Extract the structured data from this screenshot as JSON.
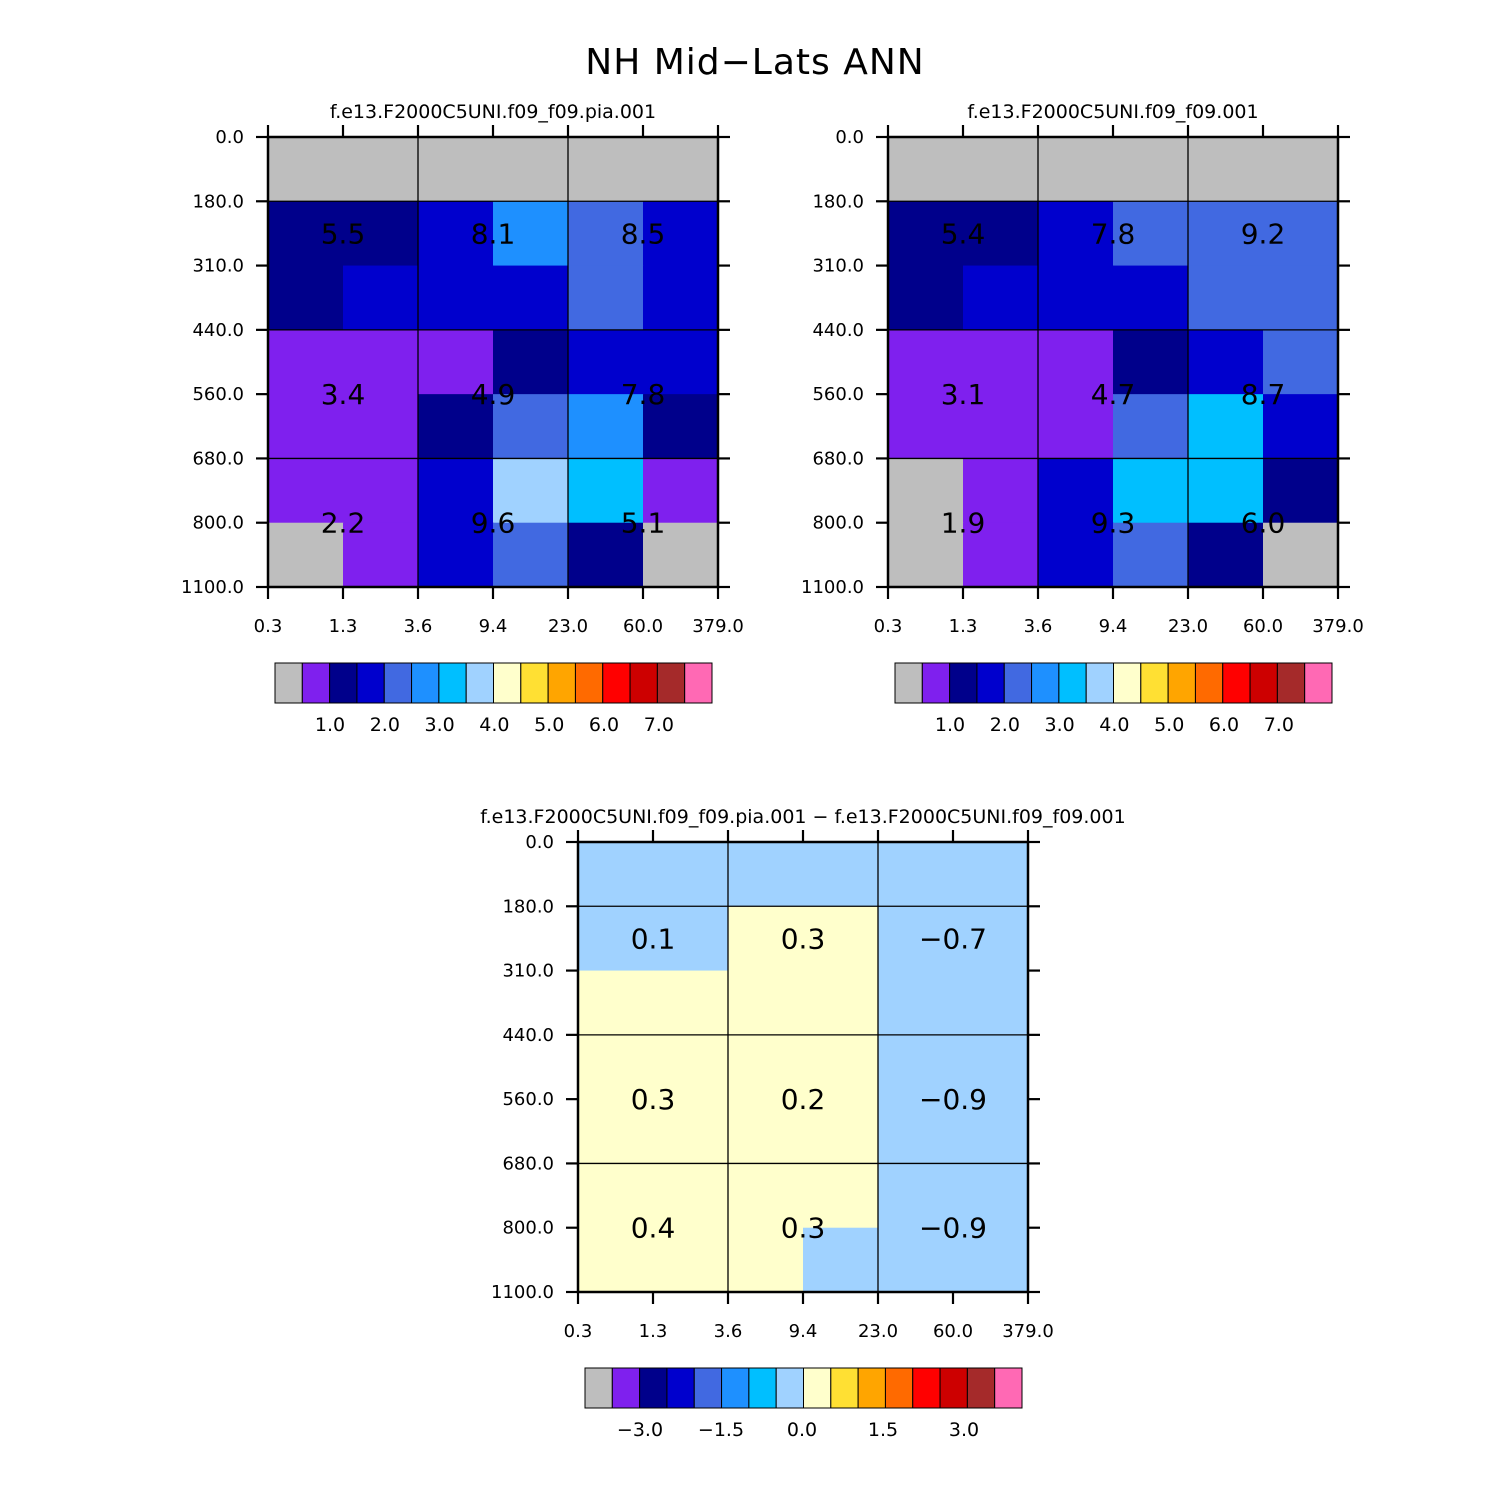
{
  "title": "NH Mid−Lats ANN",
  "colors": {
    "missing": "#bebebe",
    "abs_palette": [
      "#bebebe",
      "#7f20ee",
      "#00008b",
      "#0000cd",
      "#4169e1",
      "#1e90ff",
      "#00bfff",
      "#a0d2ff",
      "#ffffcc",
      "#ffe033",
      "#ffa500",
      "#ff6a00",
      "#ff0000",
      "#cd0000",
      "#a52a2a",
      "#ff69b4"
    ],
    "diff_palette": [
      "#bebebe",
      "#7f20ee",
      "#00008b",
      "#0000cd",
      "#4169e1",
      "#1e90ff",
      "#00bfff",
      "#a0d2ff",
      "#ffffcc",
      "#ffe033",
      "#ffa500",
      "#ff6a00",
      "#ff0000",
      "#cd0000",
      "#a52a2a",
      "#ff69b4"
    ]
  },
  "chart_data": [
    {
      "type": "heatmap",
      "title": "f.e13.F2000C5UNI.f09_f09.pia.001",
      "x_ticks": [
        "0.3",
        "1.3",
        "3.6",
        "9.4",
        "23.0",
        "60.0",
        "379.0"
      ],
      "y_ticks": [
        "0.0",
        "180.0",
        "310.0",
        "440.0",
        "560.0",
        "680.0",
        "800.0",
        "1100.0"
      ],
      "cell_colors": [
        [
          0,
          0,
          0,
          0,
          0,
          0
        ],
        [
          2,
          2,
          3,
          5,
          4,
          3
        ],
        [
          2,
          3,
          3,
          3,
          4,
          3
        ],
        [
          1,
          1,
          1,
          2,
          3,
          3
        ],
        [
          1,
          1,
          2,
          4,
          5,
          2
        ],
        [
          1,
          1,
          3,
          7,
          6,
          1
        ],
        [
          0,
          1,
          3,
          4,
          2,
          0
        ]
      ],
      "summary_labels": [
        [
          "5.5",
          "8.1",
          "8.5"
        ],
        [
          "3.4",
          "4.9",
          "7.8"
        ],
        [
          "2.2",
          "9.6",
          "5.1"
        ]
      ],
      "colorbar": {
        "labels": [
          "1.0",
          "2.0",
          "3.0",
          "4.0",
          "5.0",
          "6.0",
          "7.0"
        ]
      }
    },
    {
      "type": "heatmap",
      "title": "f.e13.F2000C5UNI.f09_f09.001",
      "x_ticks": [
        "0.3",
        "1.3",
        "3.6",
        "9.4",
        "23.0",
        "60.0",
        "379.0"
      ],
      "y_ticks": [
        "0.0",
        "180.0",
        "310.0",
        "440.0",
        "560.0",
        "680.0",
        "800.0",
        "1100.0"
      ],
      "cell_colors": [
        [
          0,
          0,
          0,
          0,
          0,
          0
        ],
        [
          2,
          2,
          3,
          4,
          4,
          4
        ],
        [
          2,
          3,
          3,
          3,
          4,
          4
        ],
        [
          1,
          1,
          1,
          2,
          3,
          4
        ],
        [
          1,
          1,
          1,
          4,
          6,
          3
        ],
        [
          0,
          1,
          3,
          6,
          6,
          2
        ],
        [
          0,
          1,
          3,
          4,
          2,
          0
        ]
      ],
      "summary_labels": [
        [
          "5.4",
          "7.8",
          "9.2"
        ],
        [
          "3.1",
          "4.7",
          "8.7"
        ],
        [
          "1.9",
          "9.3",
          "6.0"
        ]
      ],
      "colorbar": {
        "labels": [
          "1.0",
          "2.0",
          "3.0",
          "4.0",
          "5.0",
          "6.0",
          "7.0"
        ]
      }
    },
    {
      "type": "heatmap",
      "title": "f.e13.F2000C5UNI.f09_f09.pia.001 − f.e13.F2000C5UNI.f09_f09.001",
      "x_ticks": [
        "0.3",
        "1.3",
        "3.6",
        "9.4",
        "23.0",
        "60.0",
        "379.0"
      ],
      "y_ticks": [
        "0.0",
        "180.0",
        "310.0",
        "440.0",
        "560.0",
        "680.0",
        "800.0",
        "1100.0"
      ],
      "cell_colors": [
        [
          7,
          7,
          7,
          7,
          7,
          7
        ],
        [
          7,
          7,
          8,
          8,
          7,
          7
        ],
        [
          8,
          8,
          8,
          8,
          7,
          7
        ],
        [
          8,
          8,
          8,
          8,
          7,
          7
        ],
        [
          8,
          8,
          8,
          8,
          7,
          7
        ],
        [
          8,
          8,
          8,
          8,
          7,
          7
        ],
        [
          8,
          8,
          8,
          7,
          7,
          7
        ]
      ],
      "summary_labels": [
        [
          "0.1",
          "0.3",
          "−0.7"
        ],
        [
          "0.3",
          "0.2",
          "−0.9"
        ],
        [
          "0.4",
          "0.3",
          "−0.9"
        ]
      ],
      "colorbar": {
        "labels": [
          "−3.0",
          "−1.5",
          "0.0",
          "1.5",
          "3.0"
        ]
      }
    }
  ]
}
